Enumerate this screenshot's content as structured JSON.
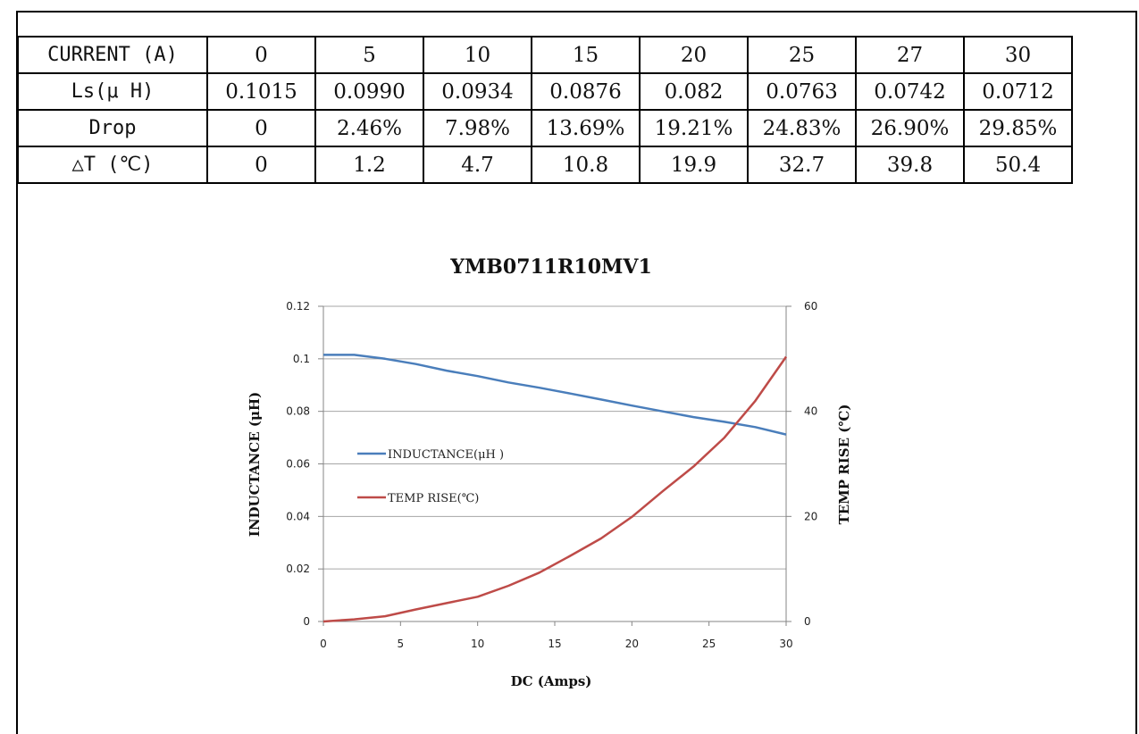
{
  "table": {
    "rows": [
      {
        "label": "CURRENT (A)",
        "values": [
          "0",
          "5",
          "10",
          "15",
          "20",
          "25",
          "27",
          "30"
        ]
      },
      {
        "label": "Ls(μ H)",
        "values": [
          "0.1015",
          "0.0990",
          "0.0934",
          "0.0876",
          "0.082",
          "0.0763",
          "0.0742",
          "0.0712"
        ]
      },
      {
        "label": "Drop",
        "values": [
          "0",
          "2.46%",
          "7.98%",
          "13.69%",
          "19.21%",
          "24.83%",
          "26.90%",
          "29.85%"
        ]
      },
      {
        "label": "△T (℃)",
        "values": [
          "0",
          "1.2",
          "4.7",
          "10.8",
          "19.9",
          "32.7",
          "39.8",
          "50.4"
        ]
      }
    ]
  },
  "chart_data": {
    "type": "line",
    "title": "YMB0711R10MV1",
    "xlabel": "DC (Amps)",
    "ylabel": "INDUCTANCE (μH)",
    "y2label": "TEMP RISE (℃)",
    "xlim": [
      0,
      30
    ],
    "ylim": [
      0,
      0.12
    ],
    "y2lim": [
      0,
      60
    ],
    "xticks": [
      "0",
      "5",
      "10",
      "15",
      "20",
      "25",
      "30"
    ],
    "yticks": [
      "0",
      "0.02",
      "0.04",
      "0.06",
      "0.08",
      "0.1",
      "0.12"
    ],
    "y2ticks": [
      "0",
      "20",
      "40",
      "60"
    ],
    "grid": true,
    "legend_placement": "center-left",
    "series": [
      {
        "name": "INDUCTANCE(μH )",
        "axis": "left",
        "color": "#4a7ebb",
        "x": [
          0,
          2,
          4,
          6,
          8,
          10,
          12,
          14,
          16,
          18,
          20,
          22,
          24,
          26,
          28,
          30
        ],
        "values": [
          0.1015,
          0.1015,
          0.1,
          0.098,
          0.0955,
          0.0934,
          0.091,
          0.089,
          0.0868,
          0.0845,
          0.0822,
          0.08,
          0.0778,
          0.076,
          0.074,
          0.0712
        ]
      },
      {
        "name": "TEMP RISE(℃)",
        "axis": "right",
        "color": "#be4b48",
        "x": [
          0,
          2,
          4,
          6,
          8,
          10,
          12,
          14,
          16,
          18,
          20,
          22,
          24,
          26,
          28,
          30
        ],
        "values": [
          0,
          0.4,
          1.0,
          2.3,
          3.5,
          4.7,
          6.8,
          9.3,
          12.5,
          15.8,
          19.9,
          24.8,
          29.5,
          35.0,
          42.0,
          50.4
        ]
      }
    ]
  }
}
